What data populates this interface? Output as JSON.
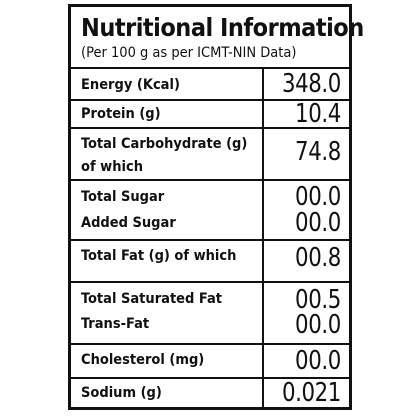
{
  "header": {
    "title": "Nutritional Information",
    "subtitle": "(Per 100 g as per ICMT-NIN Data)"
  },
  "rows": [
    {
      "label": "Energy (Kcal)",
      "value": "348.0"
    },
    {
      "label": "Protein (g)",
      "value": "10.4"
    },
    {
      "label_line1": "Total Carbohydrate (g)",
      "label_line2": "of which",
      "value": "74.8"
    },
    {
      "label": "Total Sugar",
      "value": "00.0"
    },
    {
      "label": "Added Sugar",
      "value": "00.0"
    },
    {
      "label": "Total Fat (g) of which",
      "value": "00.8"
    },
    {
      "label": "Total Saturated Fat",
      "value": "00.5"
    },
    {
      "label": "Trans-Fat",
      "value": "00.0"
    },
    {
      "label": "Cholesterol (mg)",
      "value": "00.0"
    },
    {
      "label": "Sodium (g)",
      "value": "0.021"
    }
  ]
}
